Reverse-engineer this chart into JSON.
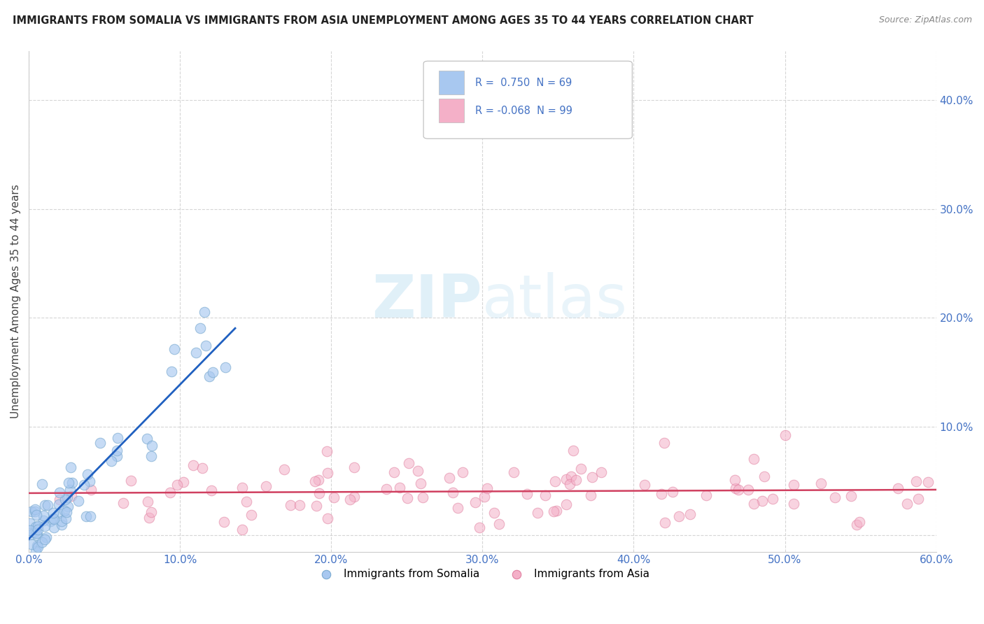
{
  "title": "IMMIGRANTS FROM SOMALIA VS IMMIGRANTS FROM ASIA UNEMPLOYMENT AMONG AGES 35 TO 44 YEARS CORRELATION CHART",
  "source": "Source: ZipAtlas.com",
  "ylabel": "Unemployment Among Ages 35 to 44 years",
  "xlim": [
    0.0,
    0.6
  ],
  "ylim": [
    -0.015,
    0.445
  ],
  "xticks": [
    0.0,
    0.1,
    0.2,
    0.3,
    0.4,
    0.5,
    0.6
  ],
  "yticks": [
    0.0,
    0.1,
    0.2,
    0.3,
    0.4
  ],
  "somalia_color": "#a8c8f0",
  "somalia_edge_color": "#7aaad0",
  "asia_color": "#f4b0c8",
  "asia_edge_color": "#e080a0",
  "somalia_line_color": "#2060c0",
  "asia_line_color": "#d04060",
  "somalia_R": 0.75,
  "somalia_N": 69,
  "asia_R": -0.068,
  "asia_N": 99,
  "legend_label_somalia": "Immigrants from Somalia",
  "legend_label_asia": "Immigrants from Asia",
  "watermark_zip": "ZIP",
  "watermark_atlas": "atlas",
  "background_color": "#ffffff",
  "grid_color": "#cccccc",
  "tick_color": "#4472c4",
  "title_color": "#222222",
  "source_color": "#888888"
}
